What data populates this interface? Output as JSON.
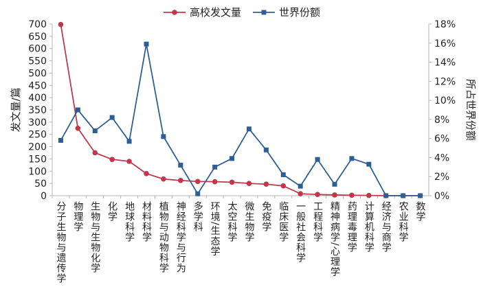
{
  "chart_data": {
    "type": "line",
    "categories": [
      "分子生物与遗传学",
      "物理学",
      "生物与生物化学",
      "化学",
      "地球科学",
      "材料科学",
      "植物与动物科学",
      "神经科学与行为",
      "多学科",
      "环境/生态学",
      "太空科学",
      "微生物学",
      "免疫学",
      "临床医学",
      "一般社会科学",
      "工程科学",
      "精神病学/心理学",
      "药理毒理学",
      "计算机科学",
      "经济与商学",
      "农业科学",
      "数学"
    ],
    "series": [
      {
        "name": "高校发文量",
        "axis": "left",
        "color": "#c0394a",
        "marker": "circle",
        "values": [
          698,
          275,
          175,
          148,
          140,
          90,
          68,
          62,
          58,
          57,
          55,
          50,
          47,
          40,
          8,
          5,
          3,
          2,
          1,
          0,
          0,
          0
        ]
      },
      {
        "name": "世界份额",
        "axis": "right",
        "color": "#2e5f94",
        "marker": "square",
        "values": [
          5.8,
          9.0,
          6.8,
          8.2,
          5.7,
          15.9,
          6.2,
          3.2,
          0.2,
          3.0,
          3.9,
          7.0,
          4.8,
          2.2,
          1.0,
          3.8,
          1.2,
          3.9,
          3.3,
          0,
          0,
          0
        ]
      }
    ],
    "ylabel": "发文量/篇",
    "y2label": "所占世界份额",
    "ylim": [
      0,
      700
    ],
    "y2lim": [
      0,
      18
    ],
    "yticks": [
      "0",
      "50",
      "100",
      "150",
      "200",
      "250",
      "300",
      "350",
      "400",
      "450",
      "500",
      "550",
      "600",
      "650",
      "700"
    ],
    "y2ticks": [
      "0%",
      "2%",
      "4%",
      "6%",
      "8%",
      "10%",
      "12%",
      "14%",
      "16%",
      "18%"
    ],
    "grid": false,
    "legend": "top-center"
  }
}
